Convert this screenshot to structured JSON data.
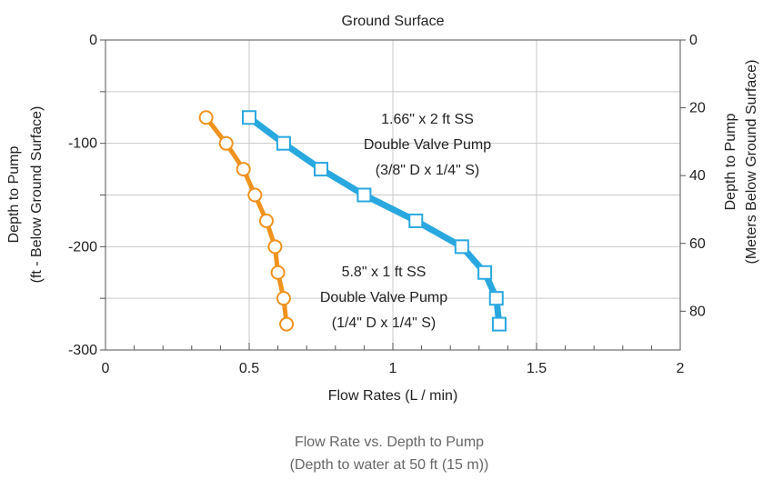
{
  "chart_data": {
    "type": "line",
    "title": "Ground Surface",
    "xlabel": "Flow Rates (L / min)",
    "ylabel_line1": "Depth to Pump",
    "ylabel_line2": "(ft - Below Ground Surface)",
    "y2label_line1": "Depth to Pump",
    "y2label_line2": "(Meters Below Ground Surface)",
    "xlim": [
      0,
      2
    ],
    "ylim": [
      -300,
      0
    ],
    "y2lim": [
      0,
      91.44
    ],
    "x_ticks": [
      0,
      0.5,
      1,
      1.5,
      2
    ],
    "x_tick_labels": [
      "0",
      "0.5",
      "1",
      "1.5",
      "2"
    ],
    "y_ticks": [
      0,
      -100,
      -200,
      -300
    ],
    "y_tick_labels": [
      "0",
      "-100",
      "-200",
      "-300"
    ],
    "y2_ticks": [
      0,
      20,
      40,
      60,
      80
    ],
    "y2_tick_labels": [
      "0",
      "20",
      "40",
      "60",
      "80"
    ],
    "grid": true,
    "series": [
      {
        "name": "5.8\" x 1 ft SS Double Valve Pump (1/4\" D x 1/4\" S)",
        "color": "#f0921e",
        "marker": "circle",
        "points": [
          [
            0.35,
            -75
          ],
          [
            0.42,
            -100
          ],
          [
            0.48,
            -125
          ],
          [
            0.52,
            -150
          ],
          [
            0.56,
            -175
          ],
          [
            0.59,
            -200
          ],
          [
            0.6,
            -225
          ],
          [
            0.62,
            -250
          ],
          [
            0.63,
            -275
          ]
        ],
        "label_lines": [
          "5.8\" x 1 ft SS",
          "Double Valve Pump",
          "(1/4\" D x 1/4\" S)"
        ]
      },
      {
        "name": "1.66\" x 2 ft SS Double Valve Pump (3/8\" D x 1/4\" S)",
        "color": "#29a8e0",
        "marker": "square",
        "points": [
          [
            0.5,
            -75
          ],
          [
            0.62,
            -100
          ],
          [
            0.75,
            -125
          ],
          [
            0.9,
            -150
          ],
          [
            1.08,
            -175
          ],
          [
            1.24,
            -200
          ],
          [
            1.32,
            -225
          ],
          [
            1.36,
            -250
          ],
          [
            1.37,
            -275
          ]
        ],
        "label_lines": [
          "1.66\" x 2 ft SS",
          "Double Valve Pump",
          "(3/8\" D x 1/4\" S)"
        ]
      }
    ]
  },
  "caption_line1": "Flow Rate vs. Depth to Pump",
  "caption_line2": "(Depth to water at 50 ft (15 m))"
}
